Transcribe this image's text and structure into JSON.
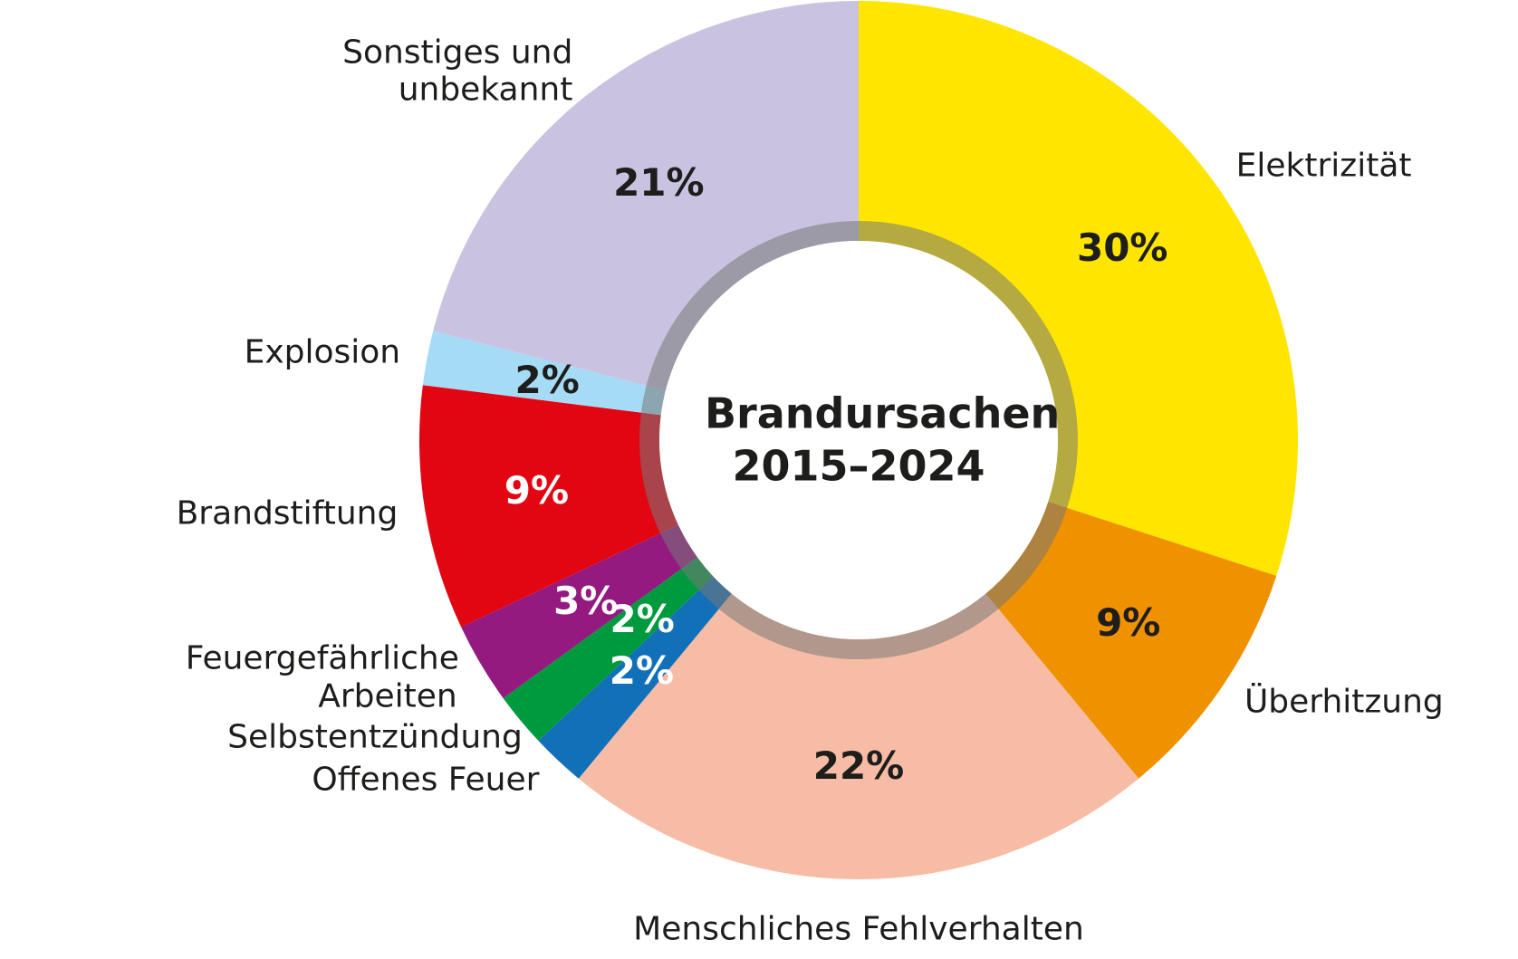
{
  "chart_data": {
    "type": "donut",
    "title": "Brandursachen 2015–2024",
    "categories": [
      "Elektrizität",
      "Überhitzung",
      "Menschliches Fehlverhalten",
      "Offenes Feuer",
      "Selbstentzündung",
      "Feuergefährliche Arbeiten",
      "Brandstiftung",
      "Explosion",
      "Sonstiges und unbekannt"
    ],
    "values": [
      30,
      9,
      22,
      2,
      2,
      3,
      9,
      2,
      21
    ],
    "value_labels": [
      "30%",
      "9%",
      "22%",
      "2%",
      "2%",
      "3%",
      "9%",
      "2%",
      "21%"
    ],
    "colors": [
      "#FFE500",
      "#F09100",
      "#F7BCA5",
      "#1170B8",
      "#009A3E",
      "#941A80",
      "#E20613",
      "#A6DBF5",
      "#C9C3E1"
    ]
  }
}
